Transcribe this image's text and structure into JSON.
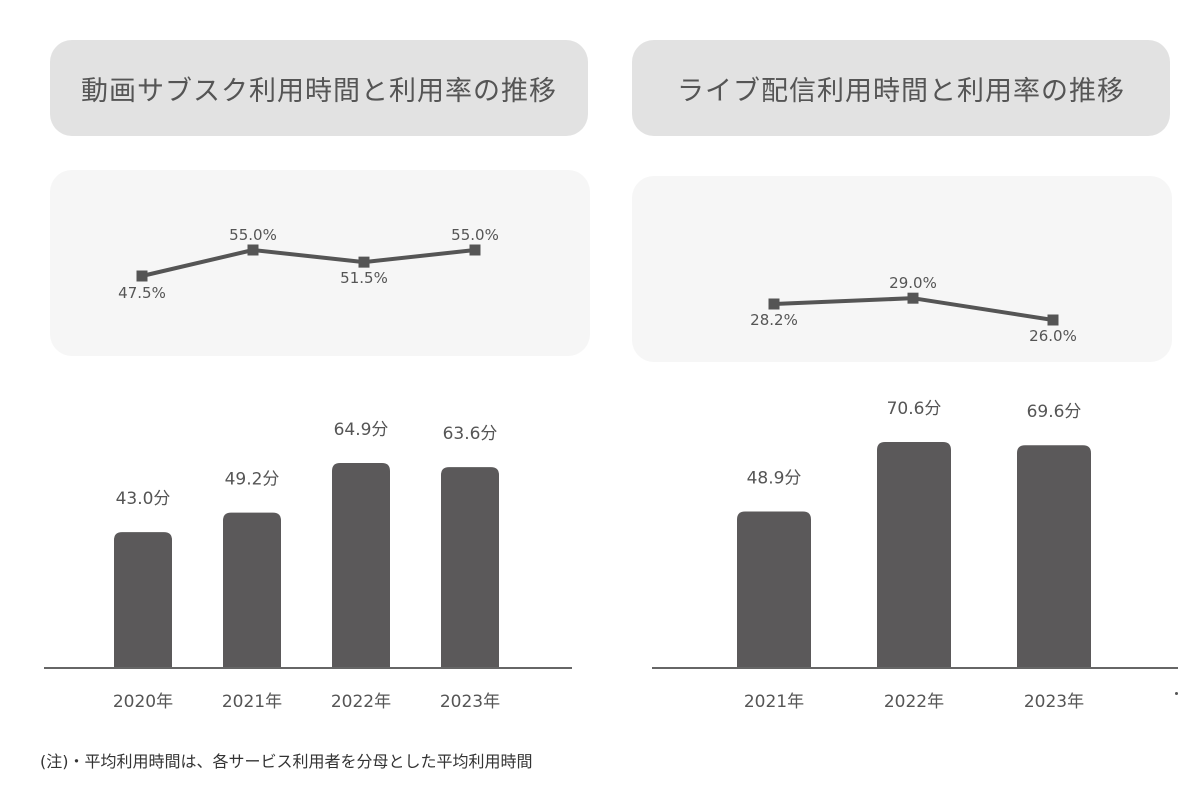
{
  "titles": {
    "left": "動画サブスク利用時間と利用率の推移",
    "right": "ライブ配信利用時間と利用率の推移"
  },
  "note": "(注)・平均利用時間は、各サービス利用者を分母とした平均利用時間",
  "colors": {
    "bar": "#5b595a",
    "line": "#555555",
    "title_bg": "#e2e2e2",
    "panel_bg": "#f6f6f6"
  },
  "chart_data": [
    {
      "id": "video-subscription-rate",
      "type": "line",
      "categories": [
        "2020年",
        "2021年",
        "2022年",
        "2023年"
      ],
      "values": [
        47.5,
        55.0,
        51.5,
        55.0
      ],
      "labels": [
        "47.5%",
        "55.0%",
        "51.5%",
        "55.0%"
      ],
      "unit": "%"
    },
    {
      "id": "video-subscription-time",
      "type": "bar",
      "categories": [
        "2020年",
        "2021年",
        "2022年",
        "2023年"
      ],
      "values": [
        43.0,
        49.2,
        64.9,
        63.6
      ],
      "labels": [
        "43.0分",
        "49.2分",
        "64.9分",
        "63.6分"
      ],
      "unit": "分"
    },
    {
      "id": "live-streaming-rate",
      "type": "line",
      "categories": [
        "2021年",
        "2022年",
        "2023年"
      ],
      "values": [
        28.2,
        29.0,
        26.0
      ],
      "labels": [
        "28.2%",
        "29.0%",
        "26.0%"
      ],
      "unit": "%"
    },
    {
      "id": "live-streaming-time",
      "type": "bar",
      "categories": [
        "2021年",
        "2022年",
        "2023年"
      ],
      "values": [
        48.9,
        70.6,
        69.6
      ],
      "labels": [
        "48.9分",
        "70.6分",
        "69.6分"
      ],
      "unit": "分"
    }
  ]
}
